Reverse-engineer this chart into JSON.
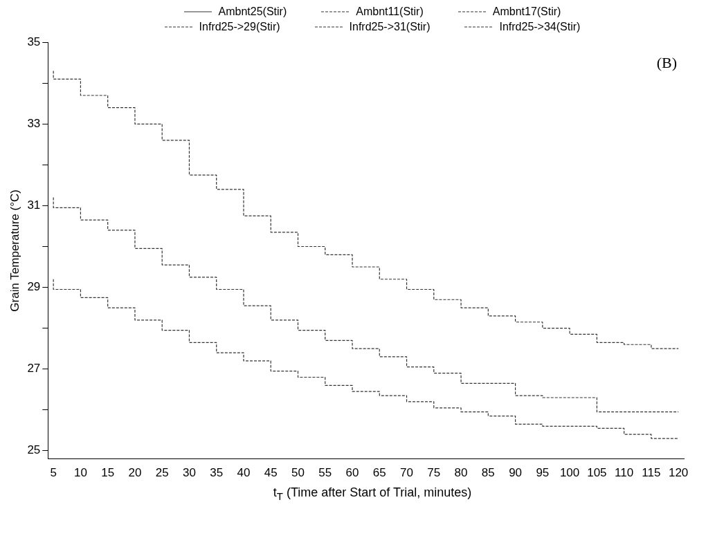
{
  "chart_data": {
    "type": "step",
    "xlabel": "t$_{T}$ (Time after Start of Trial, minutes)",
    "ylabel": "Grain Temperature (°C)",
    "annotations": [
      "(B)"
    ],
    "x": [
      5,
      10,
      15,
      20,
      25,
      30,
      35,
      40,
      45,
      50,
      55,
      60,
      65,
      70,
      75,
      80,
      85,
      90,
      95,
      100,
      105,
      110,
      115,
      120
    ],
    "xlim": [
      4,
      121
    ],
    "xticks": [
      5,
      10,
      15,
      20,
      25,
      30,
      35,
      40,
      45,
      50,
      55,
      60,
      65,
      70,
      75,
      80,
      85,
      90,
      95,
      100,
      105,
      110,
      115,
      120
    ],
    "ylim": [
      24.8,
      35
    ],
    "yticks": [
      25,
      {
        "value": 26,
        "label": null
      },
      27,
      {
        "value": 28,
        "label": null
      },
      29,
      {
        "value": 30,
        "label": null
      },
      31,
      {
        "value": 32,
        "label": null
      },
      33,
      {
        "value": 34,
        "label": null
      },
      35
    ],
    "legend": "top",
    "grid": false,
    "series": [
      {
        "name": "Ambnt25(Stir)",
        "color": "#333333",
        "line_style": "solid",
        "values": [
          null,
          null,
          null,
          null,
          null,
          null,
          null,
          null,
          null,
          null,
          null,
          null,
          null,
          null,
          null,
          null,
          null,
          null,
          null,
          null,
          null,
          null,
          null,
          null
        ]
      },
      {
        "name": "Ambnt11(Stir)",
        "color": "#333333",
        "line_style": "dashed",
        "values": [
          null,
          null,
          null,
          null,
          null,
          null,
          null,
          null,
          null,
          null,
          null,
          null,
          null,
          null,
          null,
          null,
          null,
          null,
          null,
          null,
          null,
          null,
          null,
          null
        ]
      },
      {
        "name": "Ambnt17(Stir)",
        "color": "#333333",
        "line_style": "dashed",
        "values": [
          null,
          null,
          null,
          null,
          null,
          null,
          null,
          null,
          null,
          null,
          null,
          null,
          null,
          null,
          null,
          null,
          null,
          null,
          null,
          null,
          null,
          null,
          null,
          null
        ]
      },
      {
        "name": "Infrd25->29(Stir)",
        "color": "#333333",
        "line_style": "dashed",
        "values": [
          29.2,
          28.95,
          28.75,
          28.5,
          28.2,
          27.95,
          27.65,
          27.4,
          27.2,
          26.95,
          26.8,
          26.6,
          26.45,
          26.35,
          26.2,
          26.05,
          25.95,
          25.85,
          25.65,
          25.6,
          25.6,
          25.55,
          25.4,
          25.3
        ]
      },
      {
        "name": "Infrd25->31(Stir)",
        "color": "#333333",
        "line_style": "dashed",
        "values": [
          31.2,
          30.95,
          30.65,
          30.4,
          29.95,
          29.55,
          29.25,
          28.95,
          28.55,
          28.2,
          27.95,
          27.7,
          27.5,
          27.3,
          27.05,
          26.9,
          26.65,
          26.65,
          26.35,
          26.3,
          26.3,
          25.95,
          25.95,
          25.95
        ]
      },
      {
        "name": "Infrd25->34(Stir)",
        "color": "#333333",
        "line_style": "dashed",
        "values": [
          34.3,
          34.1,
          33.7,
          33.4,
          33.0,
          32.6,
          31.75,
          31.4,
          30.75,
          30.35,
          30.0,
          29.8,
          29.5,
          29.2,
          28.95,
          28.7,
          28.5,
          28.3,
          28.15,
          28.0,
          27.85,
          27.65,
          27.6,
          27.5
        ]
      }
    ]
  }
}
